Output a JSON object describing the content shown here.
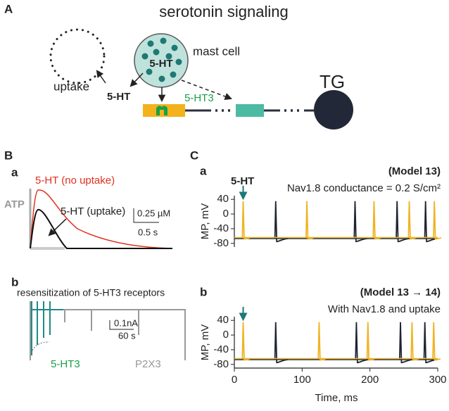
{
  "panel_a": {
    "label": "A",
    "title": "serotonin signaling",
    "mast_cell": "mast cell",
    "cell_5ht": "5-HT",
    "uptake": "uptake",
    "released_5ht": "5-HT",
    "receptor": "5-HT3",
    "ganglion": "TG"
  },
  "panel_b": {
    "label": "B",
    "sub_a": {
      "label": "a",
      "no_uptake": "5-HT (no uptake)",
      "atp": "ATP",
      "uptake": "5-HT (uptake)",
      "scale_y": "0.25 µM",
      "scale_x": "0.5 s"
    },
    "sub_b": {
      "label": "b",
      "title": "resensitization of 5-HT3 receptors",
      "scale_y": "0.1nA",
      "scale_x": "60 s",
      "ht3": "5-HT3",
      "p2x3": "P2X3"
    }
  },
  "panel_c": {
    "label": "C",
    "ylabel": "MP, mV",
    "xlabel": "Time, ms",
    "stimulus": "5-HT",
    "plots": [
      {
        "label": "a",
        "model": "(Model 13)",
        "caption": "Nav1.8 conductance = 0.2 S/cm²",
        "xlim": [
          0,
          300
        ],
        "ylim": [
          -90,
          50
        ],
        "yticks": [
          40,
          0,
          -40,
          -80
        ],
        "stimulus_time": 13,
        "traces": [
          {
            "color": "#1f2433",
            "rest": -67,
            "peak": 35,
            "spike_times": [
              61,
              178,
              240,
              282
            ]
          },
          {
            "color": "#f0b323",
            "rest": -64,
            "peak": 35,
            "spike_times": [
              13,
              107,
              206,
              258,
              295
            ]
          }
        ]
      },
      {
        "label": "b",
        "model": "(Model 13 → 14)",
        "caption": "With Nav1.8 and uptake",
        "xlim": [
          0,
          300
        ],
        "ylim": [
          -90,
          50
        ],
        "yticks": [
          40,
          0,
          -40,
          -80
        ],
        "xticks": [
          0,
          100,
          200,
          300
        ],
        "stimulus_time": 13,
        "traces": [
          {
            "color": "#1f2433",
            "rest": -67,
            "peak": 35,
            "spike_times": [
              61,
              180,
              245,
              281
            ]
          },
          {
            "color": "#f0b323",
            "rest": -64,
            "peak": 35,
            "spike_times": [
              13,
              125,
              197,
              262,
              294
            ]
          }
        ]
      }
    ]
  }
}
